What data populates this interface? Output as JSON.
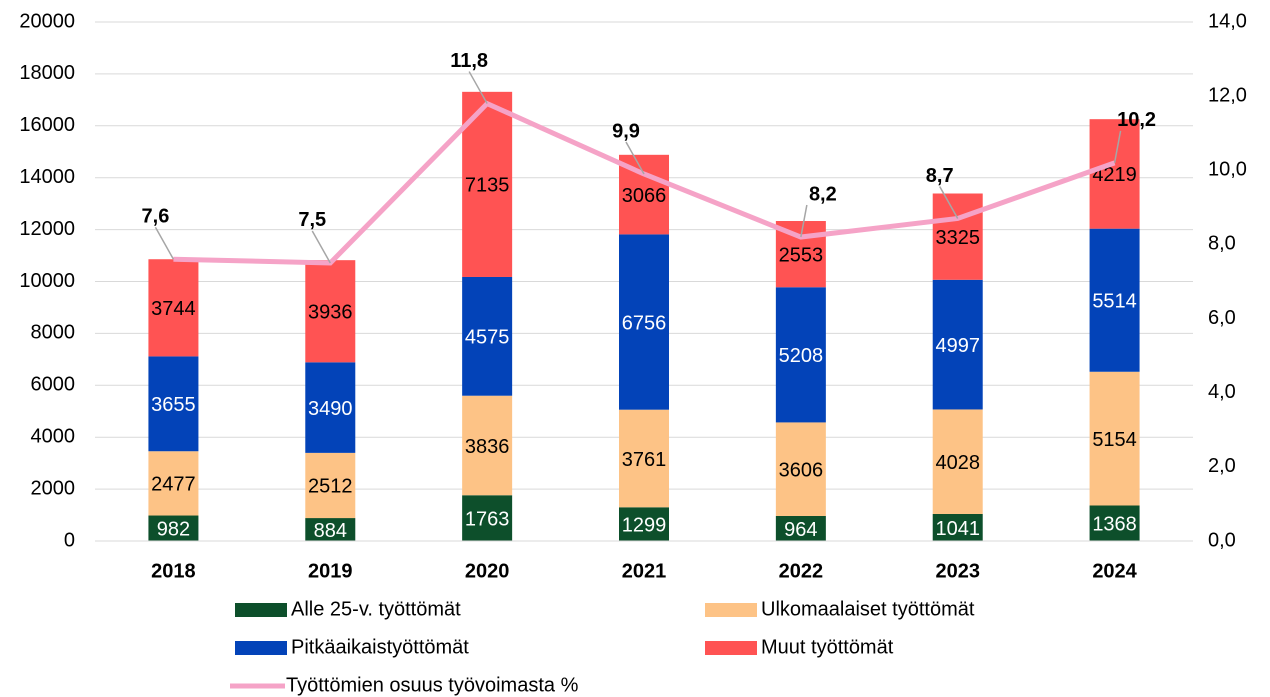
{
  "chart_data": {
    "type": "bar",
    "categories": [
      "2018",
      "2019",
      "2020",
      "2021",
      "2022",
      "2023",
      "2024"
    ],
    "stacked": true,
    "series": [
      {
        "name": "Alle 25-v. työttömät",
        "color": "#0d4f2b",
        "values": [
          982,
          884,
          1763,
          1299,
          964,
          1041,
          1368
        ]
      },
      {
        "name": "Ulkomaalaiset työttömät",
        "color": "#fdc386",
        "values": [
          2477,
          2512,
          3836,
          3761,
          3606,
          4028,
          5154
        ]
      },
      {
        "name": "Pitkäaikaistyöttömät",
        "color": "#0343b8",
        "values": [
          3655,
          3490,
          4575,
          6756,
          5208,
          4997,
          5514
        ]
      },
      {
        "name": "Muut työttömät",
        "color": "#ff5353",
        "values": [
          3744,
          3936,
          7135,
          3066,
          2553,
          3325,
          4219
        ]
      },
      {
        "name": "Työttömien osuus työvoimasta %",
        "color": "#f5a3c7",
        "type": "line",
        "axis": "y2",
        "values": [
          7.6,
          7.5,
          11.8,
          9.9,
          8.2,
          8.7,
          10.2
        ],
        "value_labels": [
          "7,6",
          "7,5",
          "11,8",
          "9,9",
          "8,2",
          "8,7",
          "10,2"
        ]
      }
    ],
    "ylim": [
      0,
      20000
    ],
    "yticks": [
      0,
      2000,
      4000,
      6000,
      8000,
      10000,
      12000,
      14000,
      16000,
      18000,
      20000
    ],
    "y2lim": [
      0,
      14
    ],
    "y2ticks": [
      {
        "value": 0,
        "label": "0,0"
      },
      {
        "value": 2,
        "label": "2,0"
      },
      {
        "value": 4,
        "label": "4,0"
      },
      {
        "value": 6,
        "label": "6,0"
      },
      {
        "value": 8,
        "label": "8,0"
      },
      {
        "value": 10,
        "label": "10,0"
      },
      {
        "value": 12,
        "label": "12,0"
      },
      {
        "value": 14,
        "label": "14,0"
      }
    ],
    "grid": true,
    "legend": "bottom"
  }
}
